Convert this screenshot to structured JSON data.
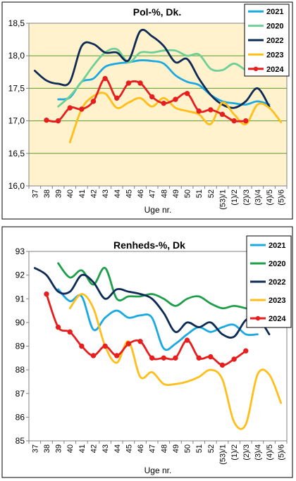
{
  "chart_data": [
    {
      "type": "line",
      "title": "Pol-%, Dk.",
      "xlabel": "Uge nr.",
      "ylabel": "",
      "ylim": [
        16.0,
        18.5
      ],
      "ytick_step": 0.5,
      "ytick_labels": [
        "16,0",
        "16,5",
        "17,0",
        "17,5",
        "18,0",
        "18,5"
      ],
      "grid": "horizontal",
      "legend_position": "top-right",
      "categories": [
        "37",
        "38",
        "39",
        "40",
        "41",
        "42",
        "43",
        "44",
        "45",
        "46",
        "47",
        "48",
        "49",
        "50",
        "51",
        "52",
        "(53)/1",
        "(1)/2",
        "(2)/3",
        "(3)/4",
        "(4)/5",
        "(5)/6"
      ],
      "series": [
        {
          "name": "2021",
          "color": "#1ca9e0",
          "values": [
            null,
            null,
            17.33,
            17.36,
            17.6,
            17.65,
            17.83,
            17.88,
            17.9,
            17.93,
            17.92,
            17.88,
            17.7,
            17.6,
            17.55,
            17.4,
            17.3,
            17.27,
            17.25,
            17.3,
            17.25,
            null
          ]
        },
        {
          "name": "2020",
          "color": "#6fcf97",
          "values": [
            null,
            null,
            17.22,
            17.38,
            17.6,
            17.85,
            18.05,
            18.1,
            17.9,
            18.05,
            18.05,
            18.08,
            18.08,
            18.0,
            18.02,
            17.8,
            17.78,
            17.88,
            17.78,
            17.72,
            null,
            null
          ]
        },
        {
          "name": "2022",
          "color": "#0d2b55",
          "values": [
            17.77,
            17.62,
            17.57,
            17.6,
            18.15,
            18.18,
            18.05,
            18.05,
            17.93,
            18.38,
            18.3,
            18.15,
            17.9,
            17.95,
            17.65,
            17.4,
            17.25,
            17.2,
            17.3,
            17.5,
            17.22,
            null
          ]
        },
        {
          "name": "2023",
          "color": "#ffbe1a",
          "values": [
            null,
            null,
            null,
            16.67,
            17.18,
            17.38,
            17.42,
            17.2,
            17.28,
            17.35,
            17.22,
            17.35,
            17.2,
            17.15,
            17.1,
            16.95,
            17.28,
            17.1,
            16.95,
            17.25,
            17.2,
            16.98
          ]
        },
        {
          "name": "2024",
          "color": "#e61e1e",
          "values": [
            null,
            17.01,
            17.0,
            17.2,
            17.18,
            17.3,
            17.65,
            17.35,
            17.58,
            17.58,
            17.37,
            17.27,
            17.33,
            17.42,
            17.15,
            17.17,
            17.1,
            17.0,
            17.0,
            null,
            null,
            null
          ]
        }
      ]
    },
    {
      "type": "line",
      "title": "Renheds-%, Dk",
      "xlabel": "Uge nr.",
      "ylabel": "",
      "ylim": [
        85,
        93
      ],
      "ytick_step": 1,
      "ytick_labels": [
        "85",
        "86",
        "87",
        "88",
        "89",
        "90",
        "91",
        "92",
        "93"
      ],
      "grid": "none",
      "legend_position": "top-right",
      "categories": [
        "37",
        "38",
        "39",
        "40",
        "41",
        "42",
        "43",
        "44",
        "45",
        "46",
        "47",
        "48",
        "49",
        "50",
        "51",
        "52",
        "(53)/1",
        "(1)/2",
        "(2)/3",
        "(3)/4",
        "(4)/5",
        "(5)/6"
      ],
      "series": [
        {
          "name": "2021",
          "color": "#1ca9e0",
          "values": [
            null,
            null,
            91.4,
            90.9,
            91.1,
            89.7,
            90.2,
            90.5,
            90.2,
            90.3,
            90.2,
            88.9,
            89.1,
            89.5,
            89.8,
            89.6,
            89.8,
            89.9,
            89.5,
            89.5,
            null,
            null
          ]
        },
        {
          "name": "2020",
          "color": "#1f9e4a",
          "values": [
            null,
            null,
            92.5,
            91.9,
            92.2,
            91.6,
            92.3,
            91.0,
            91.1,
            91.1,
            91.2,
            91.0,
            90.7,
            91.0,
            91.1,
            90.8,
            90.6,
            90.7,
            90.6,
            90.5,
            null,
            null
          ]
        },
        {
          "name": "2022",
          "color": "#0d2b55",
          "values": [
            92.3,
            92.0,
            91.3,
            91.3,
            92.0,
            91.7,
            91.0,
            91.4,
            91.3,
            91.2,
            91.0,
            90.4,
            89.6,
            90.0,
            89.8,
            90.0,
            89.5,
            89.4,
            90.1,
            90.2,
            89.5,
            null
          ]
        },
        {
          "name": "2023",
          "color": "#ffbe1a",
          "values": [
            null,
            null,
            null,
            90.6,
            91.2,
            90.6,
            89.0,
            88.3,
            89.2,
            87.7,
            87.9,
            87.4,
            87.4,
            87.5,
            87.7,
            88.0,
            87.6,
            85.8,
            85.7,
            87.8,
            87.8,
            86.6
          ]
        },
        {
          "name": "2024",
          "color": "#e61e1e",
          "values": [
            null,
            91.2,
            89.8,
            89.6,
            89.0,
            88.6,
            89.0,
            88.6,
            89.1,
            89.2,
            88.5,
            88.5,
            88.5,
            89.25,
            88.5,
            88.55,
            88.2,
            88.45,
            88.8,
            null,
            null,
            null
          ]
        }
      ]
    }
  ]
}
